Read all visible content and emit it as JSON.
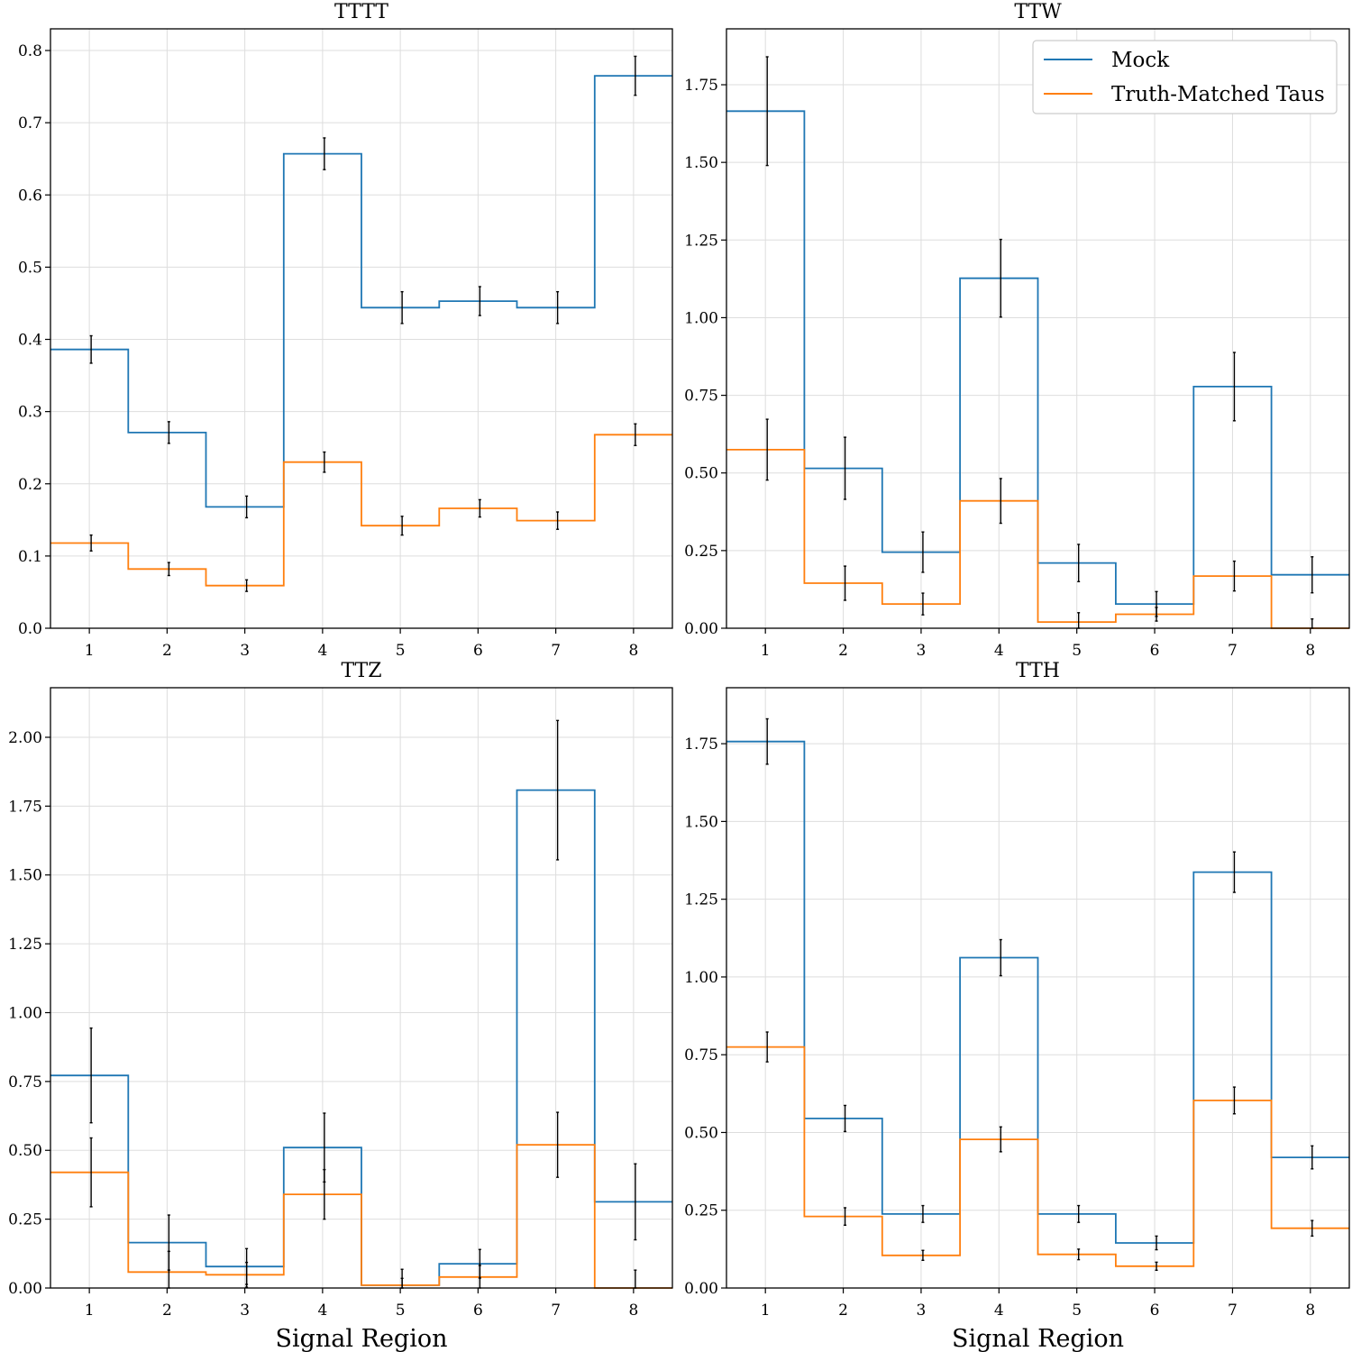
{
  "chart_data": [
    {
      "type": "step",
      "title": "TTTT",
      "xlabel": "",
      "ylabel": "",
      "xlim": [
        0.5,
        8.5
      ],
      "ylim": [
        0,
        0.83
      ],
      "xticks": [
        1,
        2,
        3,
        4,
        5,
        6,
        7,
        8
      ],
      "yticks": [
        0.0,
        0.1,
        0.2,
        0.3,
        0.4,
        0.5,
        0.6,
        0.7,
        0.8
      ],
      "ytick_labels": [
        "0.0",
        "0.1",
        "0.2",
        "0.3",
        "0.4",
        "0.5",
        "0.6",
        "0.7",
        "0.8"
      ],
      "grid": true,
      "legend": null,
      "categories": [
        1,
        2,
        3,
        4,
        5,
        6,
        7,
        8
      ],
      "series": [
        {
          "name": "Mock",
          "values": [
            0.386,
            0.271,
            0.168,
            0.657,
            0.444,
            0.453,
            0.444,
            0.765
          ],
          "errors": [
            0.019,
            0.015,
            0.015,
            0.022,
            0.022,
            0.02,
            0.022,
            0.027
          ]
        },
        {
          "name": "Truth-Matched Taus",
          "values": [
            0.118,
            0.082,
            0.059,
            0.23,
            0.142,
            0.166,
            0.149,
            0.268
          ],
          "errors": [
            0.011,
            0.009,
            0.008,
            0.014,
            0.013,
            0.012,
            0.012,
            0.015
          ]
        }
      ]
    },
    {
      "type": "step",
      "title": "TTW",
      "xlabel": "",
      "ylabel": "",
      "xlim": [
        0.5,
        8.5
      ],
      "ylim": [
        0,
        1.93
      ],
      "xticks": [
        1,
        2,
        3,
        4,
        5,
        6,
        7,
        8
      ],
      "yticks": [
        0.0,
        0.25,
        0.5,
        0.75,
        1.0,
        1.25,
        1.5,
        1.75
      ],
      "ytick_labels": [
        "0.00",
        "0.25",
        "0.50",
        "0.75",
        "1.00",
        "1.25",
        "1.50",
        "1.75"
      ],
      "grid": true,
      "legend": "top-right",
      "categories": [
        1,
        2,
        3,
        4,
        5,
        6,
        7,
        8
      ],
      "series": [
        {
          "name": "Mock",
          "values": [
            1.665,
            0.515,
            0.245,
            1.127,
            0.21,
            0.078,
            0.778,
            0.172
          ],
          "errors": [
            0.175,
            0.1,
            0.065,
            0.125,
            0.06,
            0.04,
            0.11,
            0.058
          ]
        },
        {
          "name": "Truth-Matched Taus",
          "values": [
            0.575,
            0.145,
            0.078,
            0.41,
            0.02,
            0.045,
            0.168,
            0.0
          ],
          "errors": [
            0.098,
            0.055,
            0.035,
            0.072,
            0.03,
            0.022,
            0.048,
            0.03
          ]
        }
      ]
    },
    {
      "type": "step",
      "title": "TTZ",
      "xlabel": "Signal Region",
      "ylabel": "",
      "xlim": [
        0.5,
        8.5
      ],
      "ylim": [
        0,
        2.18
      ],
      "xticks": [
        1,
        2,
        3,
        4,
        5,
        6,
        7,
        8
      ],
      "yticks": [
        0.0,
        0.25,
        0.5,
        0.75,
        1.0,
        1.25,
        1.5,
        1.75,
        2.0
      ],
      "ytick_labels": [
        "0.00",
        "0.25",
        "0.50",
        "0.75",
        "1.00",
        "1.25",
        "1.50",
        "1.75",
        "2.00"
      ],
      "grid": true,
      "legend": null,
      "categories": [
        1,
        2,
        3,
        4,
        5,
        6,
        7,
        8
      ],
      "series": [
        {
          "name": "Mock",
          "values": [
            0.772,
            0.165,
            0.078,
            0.51,
            0.01,
            0.088,
            1.808,
            0.313
          ],
          "errors": [
            0.172,
            0.1,
            0.065,
            0.125,
            0.058,
            0.052,
            0.253,
            0.138
          ]
        },
        {
          "name": "Truth-Matched Taus",
          "values": [
            0.42,
            0.058,
            0.048,
            0.34,
            0.01,
            0.04,
            0.52,
            0.0
          ],
          "errors": [
            0.125,
            0.075,
            0.045,
            0.09,
            0.025,
            0.042,
            0.118,
            0.065
          ]
        }
      ]
    },
    {
      "type": "step",
      "title": "TTH",
      "xlabel": "Signal Region",
      "ylabel": "",
      "xlim": [
        0.5,
        8.5
      ],
      "ylim": [
        0,
        1.93
      ],
      "xticks": [
        1,
        2,
        3,
        4,
        5,
        6,
        7,
        8
      ],
      "yticks": [
        0.0,
        0.25,
        0.5,
        0.75,
        1.0,
        1.25,
        1.5,
        1.75
      ],
      "ytick_labels": [
        "0.00",
        "0.25",
        "0.50",
        "0.75",
        "1.00",
        "1.25",
        "1.50",
        "1.75"
      ],
      "grid": true,
      "legend": null,
      "categories": [
        1,
        2,
        3,
        4,
        5,
        6,
        7,
        8
      ],
      "series": [
        {
          "name": "Mock",
          "values": [
            1.757,
            0.545,
            0.238,
            1.062,
            0.238,
            0.145,
            1.337,
            0.42
          ],
          "errors": [
            0.073,
            0.042,
            0.027,
            0.058,
            0.027,
            0.022,
            0.065,
            0.037
          ]
        },
        {
          "name": "Truth-Matched Taus",
          "values": [
            0.775,
            0.23,
            0.105,
            0.478,
            0.108,
            0.07,
            0.603,
            0.192
          ],
          "errors": [
            0.048,
            0.028,
            0.016,
            0.04,
            0.017,
            0.013,
            0.043,
            0.025
          ]
        }
      ]
    }
  ],
  "colors": {
    "Mock": "#1f77b4",
    "Truth-Matched Taus": "#ff7f0e",
    "error_bar": "#000000",
    "grid": "#dddddd"
  }
}
